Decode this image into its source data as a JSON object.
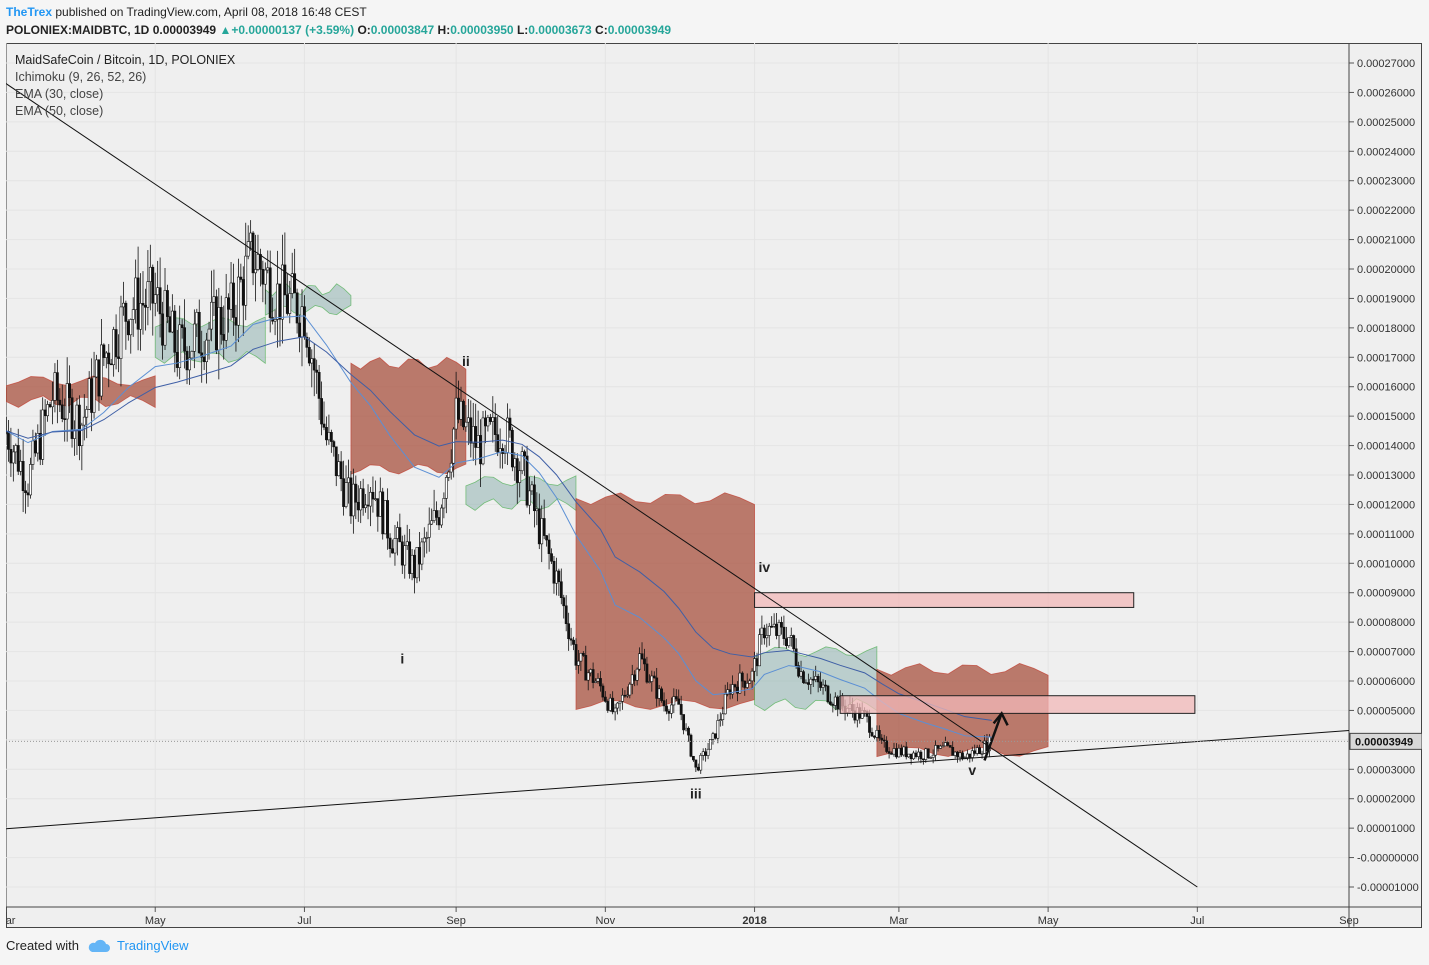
{
  "header": {
    "author": "TheTrex",
    "published_text": "published on TradingView.com, April 08, 2018 16:48 CEST",
    "symbol_line": "POLONIEX:MAIDBTC, 1D",
    "last_price": "0.00003949",
    "change": "+0.00000137 (+3.59%)",
    "open_label": "O:",
    "open": "0.00003847",
    "high_label": "H:",
    "high": "0.00003950",
    "low_label": "L:",
    "low": "0.00003673",
    "close_label": "C:",
    "close": "0.00003949"
  },
  "legend": {
    "title": "MaidSafeCoin / Bitcoin, 1D, POLONIEX",
    "indicators": [
      "Ichimoku (9, 26, 52, 26)",
      "EMA (30, close)",
      "EMA (50, close)"
    ]
  },
  "footer": {
    "created_with": "Created with",
    "brand": "TradingView"
  },
  "colors": {
    "cloud_bear": "#a8523f",
    "cloud_bull": "#8fb3b0",
    "ema30": "#5b8fd4",
    "ema50": "#3f5fa6",
    "zone_fill": "#f2b8b8",
    "candle": "#111111",
    "up_arrow": "#26a69a"
  },
  "chart_data": {
    "type": "candlestick",
    "title": "MaidSafeCoin / Bitcoin, 1D, POLONIEX",
    "y_range": [
      -1e-05,
      0.00027
    ],
    "y_tick_labels": [
      "0.00027000",
      "0.00026000",
      "0.00025000",
      "0.00024000",
      "0.00023000",
      "0.00022000",
      "0.00021000",
      "0.00020000",
      "0.00019000",
      "0.00018000",
      "0.00017000",
      "0.00016000",
      "0.00015000",
      "0.00014000",
      "0.00013000",
      "0.00012000",
      "0.00011000",
      "0.00010000",
      "0.00009000",
      "0.00008000",
      "0.00007000",
      "0.00006000",
      "0.00005000",
      "0.00004000",
      "0.00003000",
      "0.00002000",
      "0.00001000",
      "-0.00000000",
      "-0.00001000"
    ],
    "y_ticks": [
      0.00027,
      0.00026,
      0.00025,
      0.00024,
      0.00023,
      0.00022,
      0.00021,
      0.0002,
      0.00019,
      0.00018,
      0.00017,
      0.00016,
      0.00015,
      0.00014,
      0.00013,
      0.00012,
      0.00011,
      0.0001,
      9e-05,
      8e-05,
      7e-05,
      6e-05,
      5e-05,
      4e-05,
      3e-05,
      2e-05,
      1e-05,
      0,
      -1e-05
    ],
    "x_range": [
      "2017-03-01",
      "2018-09-01"
    ],
    "x_ticks": [
      {
        "date": "2017-03-01",
        "label": "Mar"
      },
      {
        "date": "2017-05-01",
        "label": "May"
      },
      {
        "date": "2017-07-01",
        "label": "Jul"
      },
      {
        "date": "2017-09-01",
        "label": "Sep"
      },
      {
        "date": "2017-11-01",
        "label": "Nov"
      },
      {
        "date": "2018-01-01",
        "label": "2018"
      },
      {
        "date": "2018-03-01",
        "label": "Mar"
      },
      {
        "date": "2018-05-01",
        "label": "May"
      },
      {
        "date": "2018-07-01",
        "label": "Jul"
      },
      {
        "date": "2018-09-01",
        "label": "Sep"
      }
    ],
    "last_price_label": "0.00003949",
    "last_price": 3.949e-05,
    "close_path": [
      [
        "2017-03-01",
        0.000145
      ],
      [
        "2017-03-10",
        0.000128
      ],
      [
        "2017-03-20",
        0.000157
      ],
      [
        "2017-04-01",
        0.000148
      ],
      [
        "2017-04-10",
        0.00017
      ],
      [
        "2017-04-20",
        0.000187
      ],
      [
        "2017-05-01",
        0.00019
      ],
      [
        "2017-05-10",
        0.000172
      ],
      [
        "2017-05-20",
        0.000178
      ],
      [
        "2017-06-01",
        0.000185
      ],
      [
        "2017-06-10",
        0.000205
      ],
      [
        "2017-06-20",
        0.000191
      ],
      [
        "2017-07-01",
        0.000186
      ],
      [
        "2017-07-10",
        0.000142
      ],
      [
        "2017-07-20",
        0.00012
      ],
      [
        "2017-07-28",
        0.000128
      ],
      [
        "2017-08-05",
        0.00011
      ],
      [
        "2017-08-15",
        9.8e-05
      ],
      [
        "2017-08-25",
        0.000118
      ],
      [
        "2017-09-01",
        0.00015
      ],
      [
        "2017-09-10",
        0.00014
      ],
      [
        "2017-09-20",
        0.000146
      ],
      [
        "2017-09-28",
        0.000132
      ],
      [
        "2017-10-05",
        0.000112
      ],
      [
        "2017-10-12",
        9.5e-05
      ],
      [
        "2017-10-20",
        6.8e-05
      ],
      [
        "2017-10-30",
        5.8e-05
      ],
      [
        "2017-11-05",
        4.8e-05
      ],
      [
        "2017-11-15",
        6.8e-05
      ],
      [
        "2017-11-25",
        5.2e-05
      ],
      [
        "2017-12-01",
        5.2e-05
      ],
      [
        "2017-12-08",
        3e-05
      ],
      [
        "2017-12-15",
        4e-05
      ],
      [
        "2017-12-22",
        5.8e-05
      ],
      [
        "2017-12-31",
        6.2e-05
      ],
      [
        "2018-01-05",
        7.8e-05
      ],
      [
        "2018-01-15",
        7.5e-05
      ],
      [
        "2018-01-20",
        6.3e-05
      ],
      [
        "2018-01-28",
        5.8e-05
      ],
      [
        "2018-02-05",
        5.2e-05
      ],
      [
        "2018-02-15",
        4.8e-05
      ],
      [
        "2018-02-22",
        3.8e-05
      ],
      [
        "2018-03-01",
        3.6e-05
      ],
      [
        "2018-03-12",
        3.5e-05
      ],
      [
        "2018-03-20",
        3.7e-05
      ],
      [
        "2018-03-28",
        3.4e-05
      ],
      [
        "2018-04-08",
        3.949e-05
      ]
    ],
    "ichimoku_cloud": [
      {
        "from": "2017-03-01",
        "to": "2017-05-01",
        "span_a": 0.000155,
        "span_b": 0.000162,
        "tone": "bear"
      },
      {
        "from": "2017-05-01",
        "to": "2017-06-15",
        "span_a": 0.00017,
        "span_b": 0.000182,
        "tone": "bull"
      },
      {
        "from": "2017-06-15",
        "to": "2017-07-20",
        "span_a": 0.000193,
        "span_b": 0.000186,
        "tone": "bull"
      },
      {
        "from": "2017-07-20",
        "to": "2017-09-05",
        "span_a": 0.000168,
        "span_b": 0.000132,
        "tone": "bear"
      },
      {
        "from": "2017-09-05",
        "to": "2017-10-20",
        "span_a": 0.00012,
        "span_b": 0.000128,
        "tone": "bull"
      },
      {
        "from": "2017-10-20",
        "to": "2018-01-01",
        "span_a": 0.000122,
        "span_b": 5.2e-05,
        "tone": "bear"
      },
      {
        "from": "2018-01-01",
        "to": "2018-02-20",
        "span_a": 5.2e-05,
        "span_b": 7e-05,
        "tone": "bull"
      },
      {
        "from": "2018-02-20",
        "to": "2018-05-01",
        "span_a": 6.4e-05,
        "span_b": 3.6e-05,
        "tone": "bear"
      }
    ],
    "trendlines": [
      {
        "from": [
          "2017-03-01",
          0.000263
        ],
        "to": [
          "2018-07-01",
          -1e-05
        ],
        "label": ""
      },
      {
        "from": [
          "2017-03-01",
          9.8e-06
        ],
        "to": [
          "2018-09-01",
          4.32e-05
        ],
        "label": ""
      }
    ],
    "resistance_zones": [
      {
        "from": "2018-01-01",
        "to": "2018-06-05",
        "low": 8.5e-05,
        "high": 9e-05
      },
      {
        "from": "2018-02-05",
        "to": "2018-06-30",
        "low": 4.9e-05,
        "high": 5.5e-05
      }
    ],
    "wave_labels": [
      {
        "text": "i",
        "date": "2017-08-10",
        "value": 6.6e-05
      },
      {
        "text": "ii",
        "date": "2017-09-05",
        "value": 0.000167
      },
      {
        "text": "iii",
        "date": "2017-12-08",
        "value": 2e-05
      },
      {
        "text": "iv",
        "date": "2018-01-05",
        "value": 9.7e-05
      },
      {
        "text": "v",
        "date": "2018-03-31",
        "value": 2.8e-05
      }
    ],
    "arrow": {
      "from": [
        "2018-04-05",
        3.3e-05
      ],
      "to": [
        "2018-04-12",
        4.9e-05
      ]
    },
    "grid": true,
    "legend_position": "top-left"
  }
}
